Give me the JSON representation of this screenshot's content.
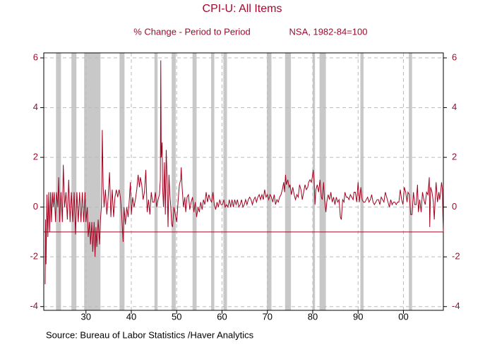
{
  "chart_data": {
    "type": "line",
    "title": "CPI-U: All Items",
    "subtitle": "% Change - Period to Period",
    "note": "NSA, 1982-84=100",
    "source": "Source:  Bureau of Labor Statistics /Haver Analytics",
    "color": "#a3001f",
    "reference_line": -1,
    "recession_color": "#c8c8c8",
    "recessions": [
      [
        1923.4,
        1924.5
      ],
      [
        1926.8,
        1927.9
      ],
      [
        1929.6,
        1933.2
      ],
      [
        1937.4,
        1938.5
      ],
      [
        1945.1,
        1945.8
      ],
      [
        1948.9,
        1949.8
      ],
      [
        1953.5,
        1954.4
      ],
      [
        1957.6,
        1958.3
      ],
      [
        1960.3,
        1961.1
      ],
      [
        1969.9,
        1970.9
      ],
      [
        1973.9,
        1975.2
      ],
      [
        1980.0,
        1980.5
      ],
      [
        1981.5,
        1982.9
      ],
      [
        1990.5,
        1991.2
      ],
      [
        2001.2,
        2001.9
      ]
    ],
    "xlim": [
      1920.7,
      2008.8
    ],
    "ylim": [
      -4.15,
      6.2
    ],
    "xticks": [
      {
        "value": 1930,
        "label": "30"
      },
      {
        "value": 1940,
        "label": "40"
      },
      {
        "value": 1950,
        "label": "50"
      },
      {
        "value": 1960,
        "label": "60"
      },
      {
        "value": 1970,
        "label": "70"
      },
      {
        "value": 1980,
        "label": "80"
      },
      {
        "value": 1990,
        "label": "90"
      },
      {
        "value": 2000,
        "label": "00"
      }
    ],
    "yticks": [
      -4,
      -2,
      0,
      2,
      4,
      6
    ],
    "grid": true,
    "x": [
      1921.0,
      1921.1,
      1921.2,
      1921.4,
      1921.6,
      1921.8,
      1922.0,
      1922.2,
      1922.4,
      1922.6,
      1922.8,
      1923.0,
      1923.3,
      1923.5,
      1923.8,
      1924.0,
      1924.2,
      1924.5,
      1924.8,
      1925.0,
      1925.3,
      1925.6,
      1925.9,
      1926.2,
      1926.5,
      1926.8,
      1927.1,
      1927.4,
      1927.7,
      1928.0,
      1928.3,
      1928.6,
      1928.9,
      1929.2,
      1929.5,
      1929.8,
      1930.0,
      1930.3,
      1930.5,
      1930.8,
      1931.0,
      1931.3,
      1931.5,
      1931.8,
      1932.0,
      1932.2,
      1932.4,
      1932.7,
      1933.0,
      1933.2,
      1933.4,
      1933.5,
      1933.6,
      1933.8,
      1934.0,
      1934.3,
      1934.6,
      1934.9,
      1935.2,
      1935.5,
      1935.8,
      1936.1,
      1936.4,
      1936.7,
      1937.0,
      1937.3,
      1937.6,
      1937.9,
      1938.2,
      1938.4,
      1938.7,
      1939.0,
      1939.3,
      1939.6,
      1939.8,
      1940.0,
      1940.3,
      1940.6,
      1940.9,
      1941.2,
      1941.5,
      1941.8,
      1942.0,
      1942.3,
      1942.6,
      1942.9,
      1943.2,
      1943.5,
      1943.8,
      1944.1,
      1944.4,
      1944.7,
      1945.0,
      1945.3,
      1945.6,
      1945.9,
      1946.2,
      1946.4,
      1946.5,
      1946.6,
      1946.8,
      1946.9,
      1947.1,
      1947.3,
      1947.5,
      1947.7,
      1947.9,
      1948.1,
      1948.3,
      1948.5,
      1948.7,
      1948.9,
      1949.1,
      1949.4,
      1949.7,
      1950.0,
      1950.3,
      1950.6,
      1950.9,
      1951.0,
      1951.2,
      1951.5,
      1951.8,
      1952.0,
      1952.3,
      1952.6,
      1952.9,
      1953.2,
      1953.5,
      1953.8,
      1954.1,
      1954.4,
      1954.7,
      1955.0,
      1955.3,
      1955.6,
      1955.9,
      1956.2,
      1956.5,
      1956.8,
      1957.1,
      1957.4,
      1957.7,
      1958.0,
      1958.3,
      1958.6,
      1958.9,
      1959.2,
      1959.5,
      1959.8,
      1960.1,
      1960.4,
      1960.7,
      1961.0,
      1961.3,
      1961.6,
      1961.9,
      1962.2,
      1962.5,
      1962.8,
      1963.1,
      1963.4,
      1963.7,
      1964.0,
      1964.3,
      1964.6,
      1964.9,
      1965.2,
      1965.5,
      1965.8,
      1966.1,
      1966.4,
      1966.7,
      1967.0,
      1967.3,
      1967.6,
      1967.9,
      1968.2,
      1968.5,
      1968.8,
      1969.1,
      1969.4,
      1969.7,
      1970.0,
      1970.3,
      1970.6,
      1970.9,
      1971.2,
      1971.5,
      1971.8,
      1972.1,
      1972.4,
      1972.7,
      1973.0,
      1973.3,
      1973.6,
      1973.8,
      1974.0,
      1974.2,
      1974.5,
      1974.8,
      1975.0,
      1975.3,
      1975.6,
      1975.9,
      1976.2,
      1976.5,
      1976.8,
      1977.1,
      1977.4,
      1977.7,
      1978.0,
      1978.3,
      1978.6,
      1978.9,
      1979.1,
      1979.4,
      1979.7,
      1979.9,
      1980.1,
      1980.3,
      1980.5,
      1980.7,
      1981.0,
      1981.3,
      1981.6,
      1981.9,
      1982.1,
      1982.4,
      1982.6,
      1982.9,
      1983.1,
      1983.4,
      1983.7,
      1984.0,
      1984.3,
      1984.6,
      1984.9,
      1985.2,
      1985.5,
      1985.8,
      1986.1,
      1986.3,
      1986.6,
      1986.9,
      1987.1,
      1987.4,
      1987.7,
      1988.0,
      1988.3,
      1988.6,
      1988.9,
      1989.1,
      1989.4,
      1989.7,
      1990.0,
      1990.3,
      1990.6,
      1990.9,
      1991.2,
      1991.5,
      1991.8,
      1992.1,
      1992.4,
      1992.7,
      1993.0,
      1993.3,
      1993.6,
      1993.9,
      1994.2,
      1994.5,
      1994.8,
      1995.1,
      1995.4,
      1995.7,
      1996.0,
      1996.3,
      1996.6,
      1996.9,
      1997.2,
      1997.5,
      1997.8,
      1998.1,
      1998.4,
      1998.7,
      1999.0,
      1999.3,
      1999.6,
      1999.9,
      2000.2,
      2000.5,
      2000.8,
      2001.0,
      2001.3,
      2001.6,
      2001.9,
      2002.2,
      2002.5,
      2002.8,
      2003.1,
      2003.3,
      2003.6,
      2003.9,
      2004.2,
      2004.5,
      2004.8,
      2005.1,
      2005.4,
      2005.7,
      2005.8,
      2006.0,
      2006.3,
      2006.6,
      2006.8,
      2007.0,
      2007.2,
      2007.5,
      2007.8,
      2008.0,
      2008.2,
      2008.4,
      2008.6,
      2008.7,
      2008.8
    ],
    "values": [
      -3.1,
      -0.5,
      -2.3,
      0.5,
      -1.2,
      0.6,
      -1.0,
      0.6,
      -0.6,
      0.6,
      0,
      0.6,
      -0.6,
      0.6,
      0,
      1.2,
      -0.6,
      0.6,
      -0.6,
      1.7,
      0,
      0.6,
      -0.5,
      1.1,
      -0.6,
      0.6,
      -0.6,
      0.6,
      -1.1,
      0.6,
      -0.6,
      0.6,
      -0.6,
      0.6,
      -0.6,
      0.6,
      -0.6,
      0,
      -1.2,
      -0.6,
      -1.5,
      -0.6,
      -1.8,
      -0.6,
      -2.0,
      -0.8,
      -1.6,
      -0.5,
      -1.5,
      -0.5,
      0,
      1.0,
      3.1,
      0.8,
      0,
      0.7,
      -0.3,
      0.4,
      1.4,
      -0.4,
      0.7,
      -0.4,
      0.4,
      0.7,
      0.4,
      0.7,
      0.4,
      -0.4,
      -1.4,
      0,
      -0.7,
      0,
      -0.4,
      0.4,
      1.0,
      -0.3,
      0.4,
      0,
      0.3,
      0.7,
      1.3,
      0.8,
      1.2,
      0.9,
      0.3,
      0.6,
      1.5,
      -0.2,
      0.3,
      -0.3,
      0.6,
      0.2,
      0.2,
      0.6,
      0,
      0.3,
      0.5,
      1.1,
      5.9,
      2.0,
      2.6,
      0.8,
      0,
      1.8,
      -0.3,
      2.3,
      1.0,
      -0.8,
      1.3,
      0.5,
      0,
      -0.7,
      -0.8,
      0,
      -0.3,
      -0.6,
      0.2,
      0.9,
      1.1,
      1.6,
      0.8,
      0,
      0.4,
      -0.2,
      0.4,
      0.5,
      -0.1,
      0.2,
      0.4,
      -0.2,
      0.2,
      -0.4,
      0,
      -0.2,
      0.2,
      -0.1,
      0.3,
      0.1,
      0.6,
      0.2,
      0.5,
      0.3,
      0.2,
      0.6,
      0.1,
      -0.1,
      0.2,
      0,
      0.3,
      0.1,
      0.1,
      0.3,
      0,
      0.1,
      0,
      0.3,
      0,
      0.3,
      0,
      0.3,
      0.1,
      0.3,
      0,
      0.1,
      0.3,
      0,
      0.1,
      0.3,
      0.1,
      0.3,
      0.4,
      0.3,
      0.1,
      0.3,
      0.4,
      0.2,
      0.4,
      0.5,
      0.3,
      0.5,
      0.3,
      0.7,
      0.4,
      0.5,
      0.3,
      0.5,
      0.4,
      0.2,
      0.5,
      0.1,
      0.3,
      0.2,
      0.4,
      0.5,
      0.7,
      1.0,
      0.6,
      1.3,
      0.9,
      1.1,
      0.8,
      0.9,
      0.5,
      0.8,
      0.5,
      0.3,
      0.5,
      0.4,
      0.9,
      0.7,
      0.3,
      0.6,
      0.9,
      0.7,
      0.8,
      1.0,
      1.1,
      1.0,
      1.2,
      1.5,
      1.1,
      0.1,
      0.7,
      0.9,
      0.6,
      1.1,
      0.4,
      0.3,
      1.0,
      0.3,
      -0.2,
      0.2,
      0.5,
      0.3,
      0.6,
      0.2,
      0.4,
      0.1,
      0.4,
      0.2,
      0.3,
      -0.4,
      -0.5,
      0.3,
      0.2,
      0.6,
      0.4,
      0.4,
      0.3,
      0.5,
      0.4,
      0.3,
      0.6,
      0.6,
      0.2,
      1.0,
      0.2,
      0.8,
      0.3,
      0.2,
      0.2,
      0.3,
      0.4,
      0.2,
      0.3,
      0.5,
      0.2,
      0.1,
      0.2,
      0.3,
      0.3,
      0.1,
      0.4,
      0.3,
      0.2,
      0.6,
      0.4,
      0.2,
      0,
      0.3,
      0.1,
      0.2,
      0.2,
      0.1,
      0.2,
      0.2,
      0.7,
      0.3,
      0.1,
      0.8,
      0.6,
      0.2,
      0.6,
      0.5,
      -0.3,
      -0.3,
      0.6,
      0.1,
      0.1,
      0.9,
      -0.2,
      0.3,
      -0.2,
      0.6,
      0.3,
      0.1,
      0.6,
      0.5,
      1.2,
      -0.8,
      0.8,
      0.6,
      0.2,
      -0.5,
      0.3,
      1.0,
      0.2,
      0.6,
      0.3,
      0.6,
      1.0,
      0.7,
      -0.4,
      -1.0
    ]
  }
}
